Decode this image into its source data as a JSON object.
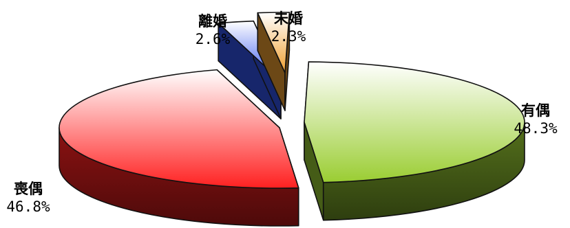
{
  "chart_data": {
    "type": "pie",
    "title": "",
    "style": "3d-exploded",
    "categories": [
      "有偶",
      "喪偶",
      "離婚",
      "未婚"
    ],
    "values": [
      48.3,
      46.8,
      2.6,
      2.3
    ],
    "value_labels": [
      "48.3%",
      "46.8%",
      "2.6%",
      "2.3%"
    ],
    "colors": [
      "#9acd32",
      "#ff2020",
      "#3355ee",
      "#f0a030"
    ],
    "legend": "none"
  }
}
